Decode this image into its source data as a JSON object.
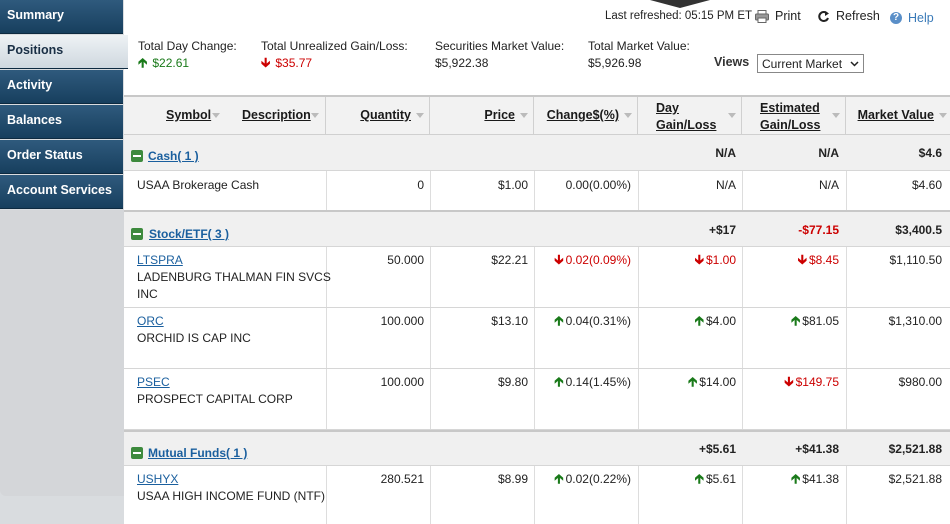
{
  "sidebar": {
    "items": [
      {
        "label": "Summary"
      },
      {
        "label": "Positions"
      },
      {
        "label": "Activity"
      },
      {
        "label": "Balances"
      },
      {
        "label": "Order Status"
      },
      {
        "label": "Account Services"
      }
    ]
  },
  "header": {
    "last_refreshed": "Last refreshed: 05:15 PM ET",
    "print": "Print",
    "refresh": "Refresh",
    "help": "Help"
  },
  "summary": {
    "total_day_change_label": "Total Day Change:",
    "total_day_change_value": "$22.61",
    "total_unrealized_label": "Total Unrealized Gain/Loss:",
    "total_unrealized_value": "$35.77",
    "securities_label": "Securities Market Value:",
    "securities_value": "$5,922.38",
    "total_market_label": "Total Market Value:",
    "total_market_value": "$5,926.98",
    "views_label": "Views",
    "views_selected": "Current Market"
  },
  "columns": {
    "symbol": "Symbol",
    "description": "Description",
    "quantity": "Quantity",
    "price": "Price",
    "change": "Change$(%)",
    "day_gl_1": "Day",
    "day_gl_2": "Gain/Loss",
    "est_gl_1": "Estimated",
    "est_gl_2": "Gain/Loss",
    "market_value": "Market Value"
  },
  "groups": {
    "cash": {
      "label": "Cash( 1 )",
      "day": "N/A",
      "est": "N/A",
      "mv": "$4.6"
    },
    "stock": {
      "label": "Stock/ETF( 3 )",
      "day": "+$17",
      "est": "-$77.15",
      "mv": "$3,400.5"
    },
    "mutual": {
      "label": "Mutual Funds( 1 )",
      "day": "+$5.61",
      "est": "+$41.38",
      "mv": "$2,521.88"
    }
  },
  "rows": {
    "cash": {
      "desc": "USAA Brokerage Cash",
      "qty": "0",
      "price": "$1.00",
      "change": "0.00(0.00%)",
      "day": "N/A",
      "est": "N/A",
      "mv": "$4.60"
    },
    "ltspra": {
      "symbol": "LTSPRA",
      "desc1": "LADENBURG THALMAN FIN SVCS",
      "desc2": "INC",
      "qty": "50.000",
      "price": "$22.21",
      "change": "0.02(0.09%)",
      "day": "$1.00",
      "est": "$8.45",
      "mv": "$1,110.50"
    },
    "orc": {
      "symbol": "ORC",
      "desc": "ORCHID IS CAP INC",
      "qty": "100.000",
      "price": "$13.10",
      "change": "0.04(0.31%)",
      "day": "$4.00",
      "est": "$81.05",
      "mv": "$1,310.00"
    },
    "psec": {
      "symbol": "PSEC",
      "desc": "PROSPECT CAPITAL CORP",
      "qty": "100.000",
      "price": "$9.80",
      "change": "0.14(1.45%)",
      "day": "$14.00",
      "est": "$149.75",
      "mv": "$980.00"
    },
    "ushyx": {
      "symbol": "USHYX",
      "desc": "USAA HIGH INCOME FUND (NTF)",
      "qty": "280.521",
      "price": "$8.99",
      "change": "0.02(0.22%)",
      "day": "$5.61",
      "est": "$41.38",
      "mv": "$2,521.88"
    }
  },
  "colors": {
    "nav": "#1f4a6c",
    "up": "#1a7a1a",
    "down": "#cc0000",
    "link": "#1a5f9e"
  }
}
